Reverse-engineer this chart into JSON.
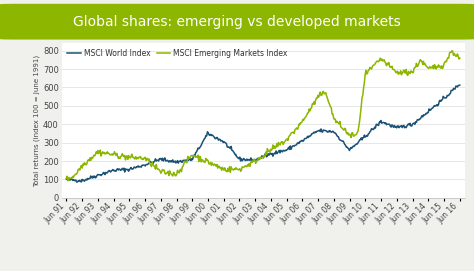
{
  "title": "Global shares: emerging vs developed markets",
  "title_bg_color": "#8db600",
  "title_text_color": "#ffffff",
  "ylabel": "Total returns (index 100 = June 1991)",
  "bg_color": "#f0f0ec",
  "plot_bg_color": "#ffffff",
  "world_color": "#1a5276",
  "emerging_color": "#8db600",
  "legend_world": "MSCI World Index",
  "legend_emerging": "MSCI Emerging Markets Index",
  "x_labels": [
    "Jun 91",
    "Jun 92",
    "Jun 93",
    "Jun 94",
    "Jun 95",
    "Jun 96",
    "Jun 97",
    "Jun 98",
    "Jun 99",
    "Jun 00",
    "Jun 01",
    "Jun 02",
    "Jun 03",
    "Jun 04",
    "Jun 05",
    "Jun 06",
    "Jun 07",
    "Jun 08",
    "Jun 09",
    "Jun 10",
    "Jun 11",
    "Jun 12",
    "Jun 13",
    "Jun 14",
    "Jun 15",
    "Jun 16"
  ],
  "yticks": [
    0,
    100,
    200,
    300,
    400,
    500,
    600,
    700,
    800
  ],
  "ylim": [
    0,
    840
  ]
}
